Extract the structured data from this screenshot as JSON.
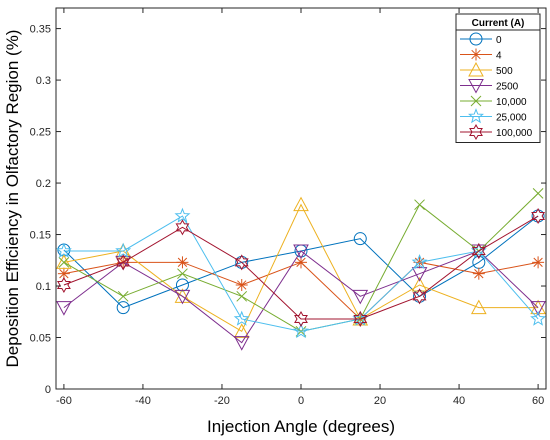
{
  "chart_data": {
    "type": "line",
    "xlabel": "Injection Angle (degrees)",
    "ylabel": "Deposition Efficiency in Olfactory Region (%)",
    "xlim": [
      -62,
      62
    ],
    "ylim": [
      0,
      0.37
    ],
    "xticks": [
      -60,
      -40,
      -20,
      0,
      20,
      40,
      60
    ],
    "yticks": [
      0,
      0.05,
      0.1,
      0.15,
      0.2,
      0.25,
      0.3,
      0.35
    ],
    "x": [
      -60,
      -45,
      -30,
      -15,
      0,
      15,
      30,
      45,
      60
    ],
    "grid": false,
    "legend_title": "Current (A)",
    "legend_position": "top-right",
    "series": [
      {
        "name": "0",
        "color": "#0072BD",
        "marker": "circle",
        "values": [
          0.135,
          0.079,
          0.101,
          0.123,
          0.134,
          0.146,
          0.09,
          0.123,
          0.168
        ]
      },
      {
        "name": "4",
        "color": "#D95319",
        "marker": "asterisk",
        "values": [
          0.112,
          0.123,
          0.123,
          0.101,
          0.123,
          0.068,
          0.123,
          0.112,
          0.123
        ]
      },
      {
        "name": "500",
        "color": "#EDB120",
        "marker": "triangle-up",
        "values": [
          0.123,
          0.134,
          0.09,
          0.056,
          0.179,
          0.068,
          0.101,
          0.079,
          0.079
        ]
      },
      {
        "name": "2500",
        "color": "#7E2F8E",
        "marker": "triangle-down",
        "values": [
          0.079,
          0.123,
          0.09,
          0.045,
          0.134,
          0.09,
          0.112,
          0.134,
          0.079
        ]
      },
      {
        "name": "10,000",
        "color": "#77AC30",
        "marker": "cross",
        "values": [
          0.123,
          0.09,
          0.112,
          0.09,
          0.056,
          0.068,
          0.179,
          0.134,
          0.19
        ]
      },
      {
        "name": "25,000",
        "color": "#4DBEEE",
        "marker": "pentagram",
        "values": [
          0.134,
          0.134,
          0.168,
          0.068,
          0.056,
          0.068,
          0.123,
          0.134,
          0.068
        ]
      },
      {
        "name": "100,000",
        "color": "#A2142F",
        "marker": "hexagram",
        "values": [
          0.101,
          0.123,
          0.157,
          0.123,
          0.068,
          0.068,
          0.09,
          0.134,
          0.168
        ]
      }
    ]
  }
}
